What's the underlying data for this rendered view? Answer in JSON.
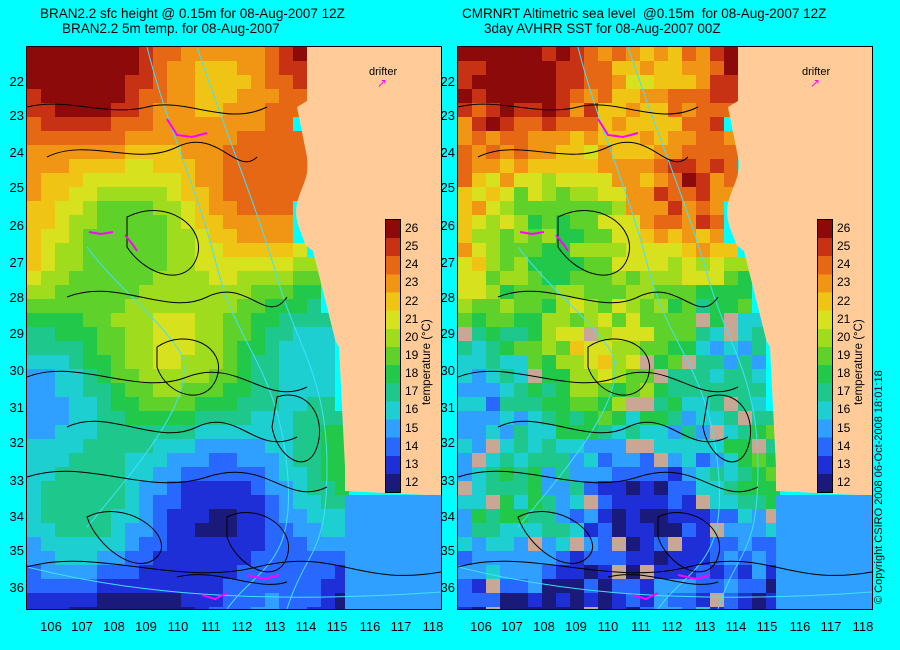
{
  "titles": {
    "left_line1": "BRAN2.2 sfc height @ 0.15m for 08-Aug-2007 12Z",
    "left_line2": "BRAN2.2 5m temp. for 08-Aug-2007",
    "right_line1": "CMRNRT Altimetric sea level  @0.15m  for 08-Aug-2007 12Z",
    "right_line2": "3day AVHRR SST for 08-Aug-2007 00Z"
  },
  "latitude_labels": [
    "22",
    "23",
    "24",
    "25",
    "26",
    "27",
    "28",
    "29",
    "30",
    "31",
    "32",
    "33",
    "34",
    "35",
    "36"
  ],
  "longitude_labels": [
    "106",
    "107",
    "108",
    "109",
    "110",
    "111",
    "112",
    "113",
    "114",
    "115",
    "116",
    "117",
    "118"
  ],
  "colorbar": {
    "title": "temperature (°C)",
    "ticks": [
      "26",
      "25",
      "24",
      "23",
      "22",
      "21",
      "20",
      "19",
      "18",
      "17",
      "16",
      "15",
      "14",
      "13",
      "12"
    ],
    "min": 11.5,
    "max": 26.5,
    "colors": [
      "#1a1a7a",
      "#1e2fd8",
      "#2868ff",
      "#2fa0ff",
      "#1ecfd2",
      "#1ec88c",
      "#22c84a",
      "#5ed22a",
      "#a0dc1e",
      "#d8e11e",
      "#f0c414",
      "#f09614",
      "#e66814",
      "#c83214",
      "#8c0a0a"
    ]
  },
  "drifter_label": "drifter",
  "drifter_arrow": "↗",
  "copyright": "© Copyright CSIRO 2008    06-Oct-2008 18:01:18",
  "colors": {
    "land": "#ffcc99",
    "background": "#00ffff",
    "contour": "#000000",
    "isobath": "#40e0ff",
    "drifter": "#ff00ff",
    "cloud": "#c8a894"
  }
}
